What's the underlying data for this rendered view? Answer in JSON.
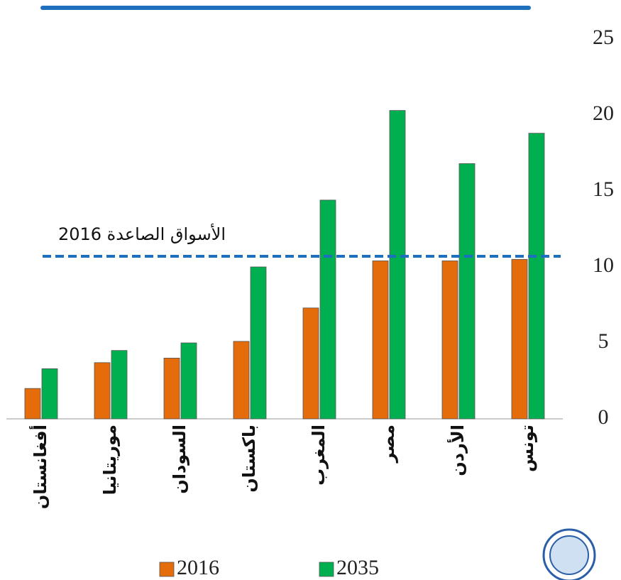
{
  "chart_data": {
    "type": "bar",
    "categories": [
      "أفغانستان",
      "موريتانيا",
      "السودان",
      "باكستان",
      "المغرب",
      "مصر",
      "الأردن",
      "تونس"
    ],
    "series": [
      {
        "name": "2016",
        "color": "#e46c0a",
        "values": [
          2.0,
          3.7,
          4.0,
          5.1,
          7.3,
          10.4,
          10.4,
          10.5
        ]
      },
      {
        "name": "2035",
        "color": "#00b050",
        "values": [
          3.3,
          4.5,
          5.0,
          10.0,
          14.4,
          20.3,
          16.8,
          18.8
        ]
      }
    ],
    "reference_line": {
      "value": 10.7,
      "label": "الأسواق الصاعدة 2016",
      "color": "#1f6fbf"
    },
    "ylim": [
      0,
      25
    ],
    "yticks": [
      0,
      5,
      10,
      15,
      20,
      25
    ],
    "grid": false,
    "legend": "bottom"
  }
}
